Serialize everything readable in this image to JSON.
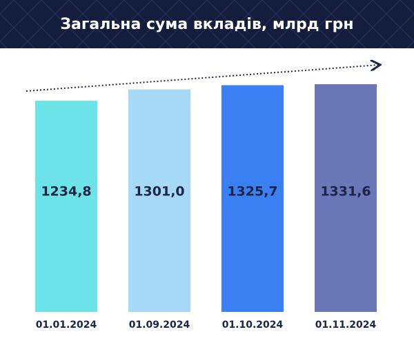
{
  "chart_data": {
    "type": "bar",
    "title": "Загальна сума вкладів, млрд грн",
    "categories": [
      "01.01.2024",
      "01.09.2024",
      "01.10.2024",
      "01.11.2024"
    ],
    "values": [
      1234.8,
      1301.0,
      1325.7,
      1331.6
    ],
    "value_labels": [
      "1234,8",
      "1301,0",
      "1325,7",
      "1331,6"
    ],
    "colors": [
      "#6ce3e7",
      "#a6d9f5",
      "#3a80f2",
      "#6a77b7"
    ]
  }
}
